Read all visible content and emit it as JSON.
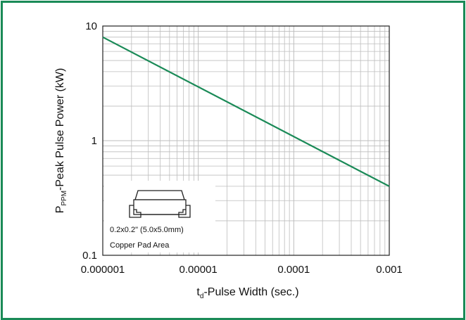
{
  "chart_data": {
    "type": "line",
    "title": "",
    "x_scale": "log",
    "y_scale": "log",
    "xlim": [
      1e-06,
      0.001
    ],
    "ylim": [
      0.1,
      10
    ],
    "x_ticks": [
      1e-06,
      1e-05,
      0.0001,
      0.001
    ],
    "x_tick_labels": [
      "0.000001",
      "0.00001",
      "0.0001",
      "0.001"
    ],
    "y_ticks": [
      0.1,
      1,
      10
    ],
    "y_tick_labels": [
      "0.1",
      "1",
      "10"
    ],
    "grid": true,
    "xlabel": {
      "main": "t",
      "sub": "d",
      "rest": "-Pulse Width (sec.)"
    },
    "ylabel": {
      "main": "P",
      "sub": "PPM",
      "rest": "-Peak Pulse Power (kW)"
    },
    "series": [
      {
        "x": [
          1e-06,
          0.001
        ],
        "y": [
          8.0,
          0.4
        ],
        "color": "#1a8a57"
      }
    ],
    "annotations": [
      {
        "text": "0.2x0.2\" (5.0x5.0mm)"
      },
      {
        "text": "Copper Pad Area"
      }
    ]
  },
  "colors": {
    "frame": "#1a8a57",
    "line": "#1a8a57",
    "grid": "#bdbdbd",
    "axis": "#222222"
  }
}
